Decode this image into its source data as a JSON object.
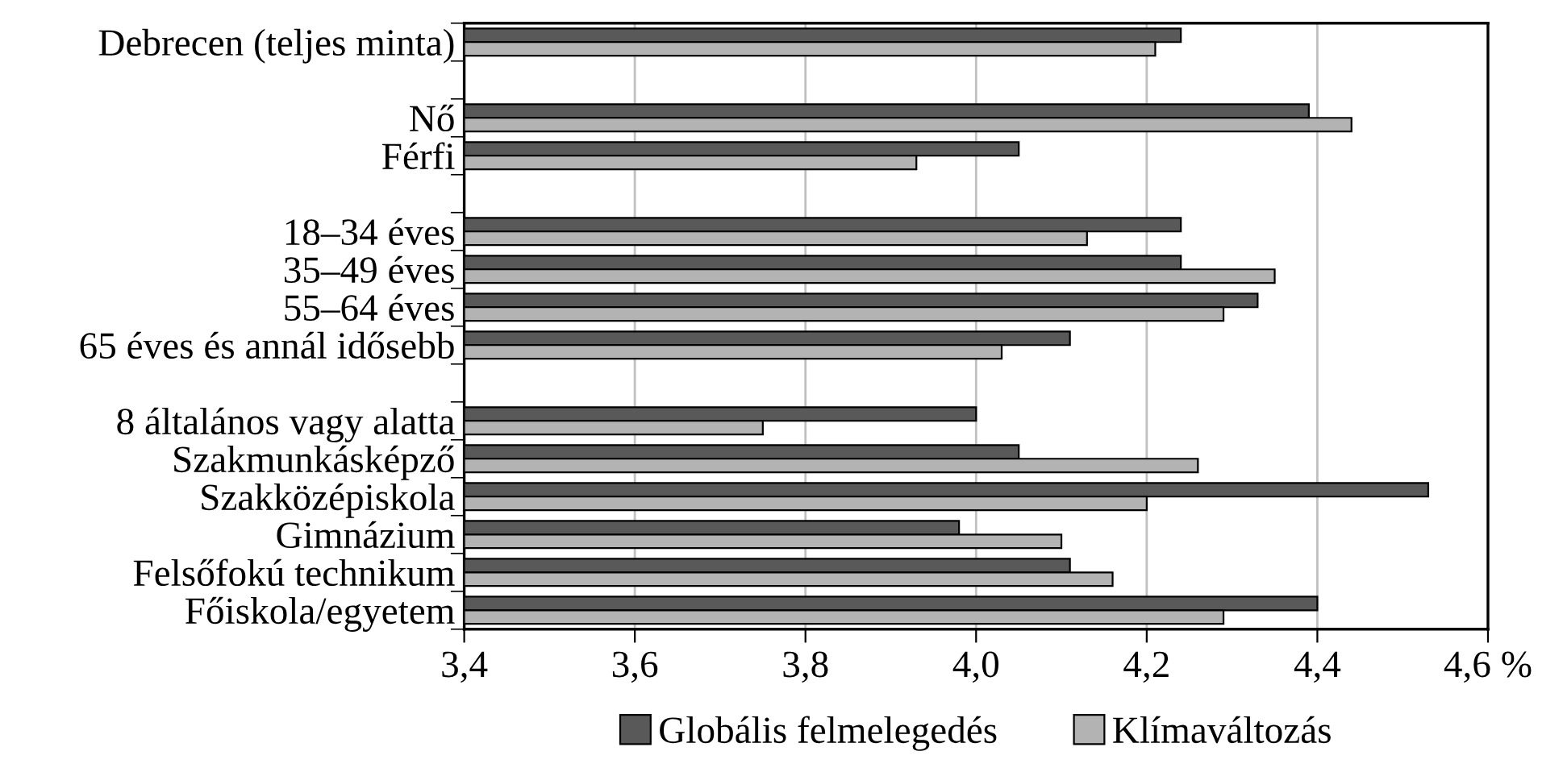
{
  "chart_data": {
    "type": "bar",
    "orientation": "horizontal",
    "categories": [
      "Debrecen (teljes minta)",
      null,
      "Nő",
      "Férfi",
      null,
      "18–34 éves",
      "35–49 éves",
      "55–64 éves",
      "65 éves és annál idősebb",
      null,
      "8 általános vagy alatta",
      "Szakmunkásképző",
      "Szakközépiskola",
      "Gimnázium",
      "Felsőfokú technikum",
      "Főiskola/egyetem"
    ],
    "series": [
      {
        "name": "Globális felmelegedés",
        "color": "#595959",
        "values": [
          4.24,
          null,
          4.39,
          4.05,
          null,
          4.24,
          4.24,
          4.33,
          4.11,
          null,
          4.0,
          4.05,
          4.53,
          3.98,
          4.11,
          4.4
        ]
      },
      {
        "name": "Klímaváltozás",
        "color": "#b3b3b3",
        "values": [
          4.21,
          null,
          4.44,
          3.93,
          null,
          4.13,
          4.35,
          4.29,
          4.03,
          null,
          3.75,
          4.26,
          4.2,
          4.1,
          4.16,
          4.29
        ]
      }
    ],
    "xlim": [
      3.4,
      4.6
    ],
    "xticks": [
      {
        "value": 3.4,
        "label": "3,4"
      },
      {
        "value": 3.6,
        "label": "3,6"
      },
      {
        "value": 3.8,
        "label": "3,8"
      },
      {
        "value": 4.0,
        "label": "4,0"
      },
      {
        "value": 4.2,
        "label": "4,2"
      },
      {
        "value": 4.4,
        "label": "4,4"
      },
      {
        "value": 4.6,
        "label": "4,6 %"
      }
    ],
    "grid": "x",
    "legend": "bottom"
  }
}
